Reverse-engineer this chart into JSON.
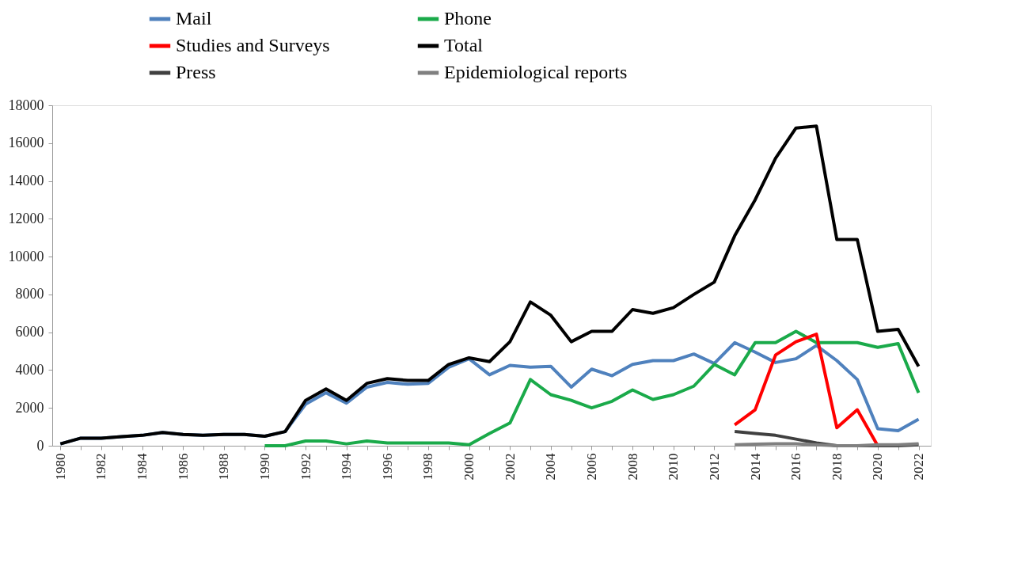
{
  "chart_data": {
    "type": "line",
    "x": [
      1980,
      1981,
      1982,
      1983,
      1984,
      1985,
      1986,
      1987,
      1988,
      1989,
      1990,
      1991,
      1992,
      1993,
      1994,
      1995,
      1996,
      1997,
      1998,
      1999,
      2000,
      2001,
      2002,
      2003,
      2004,
      2005,
      2006,
      2007,
      2008,
      2009,
      2010,
      2011,
      2012,
      2013,
      2014,
      2015,
      2016,
      2017,
      2018,
      2019,
      2020,
      2021,
      2022
    ],
    "series": [
      {
        "name": "Mail",
        "color": "#4f81bd",
        "values": [
          100,
          400,
          400,
          480,
          550,
          700,
          600,
          550,
          600,
          600,
          500,
          750,
          2200,
          2800,
          2250,
          3100,
          3350,
          3250,
          3300,
          4150,
          4600,
          3750,
          4250,
          4150,
          4200,
          3100,
          4050,
          3700,
          4300,
          4500,
          4500,
          4850,
          4350,
          5450,
          4950,
          4400,
          4600,
          5300,
          4500,
          3500,
          900,
          800,
          1400
        ]
      },
      {
        "name": "Phone",
        "color": "#1aaa4a",
        "values": [
          null,
          null,
          null,
          null,
          null,
          null,
          null,
          null,
          null,
          null,
          0,
          0,
          250,
          250,
          100,
          250,
          150,
          150,
          150,
          150,
          50,
          650,
          1200,
          3500,
          2700,
          2400,
          2000,
          2350,
          2950,
          2450,
          2700,
          3150,
          4300,
          3750,
          5450,
          5450,
          6050,
          5450,
          5450,
          5450,
          5200,
          5400,
          2800
        ]
      },
      {
        "name": "Studies and Surveys",
        "color": "#ff0000",
        "values": [
          null,
          null,
          null,
          null,
          null,
          null,
          null,
          null,
          null,
          null,
          null,
          null,
          null,
          null,
          null,
          null,
          null,
          null,
          null,
          null,
          null,
          null,
          null,
          null,
          null,
          null,
          null,
          null,
          null,
          null,
          null,
          null,
          null,
          1100,
          1900,
          4800,
          5500,
          5900,
          950,
          1900,
          0,
          null,
          null
        ]
      },
      {
        "name": "Total",
        "color": "#000000",
        "values": [
          100,
          400,
          400,
          480,
          550,
          700,
          600,
          550,
          600,
          600,
          500,
          750,
          2400,
          3000,
          2400,
          3300,
          3550,
          3450,
          3450,
          4300,
          4650,
          4450,
          5500,
          7600,
          6900,
          5500,
          6050,
          6050,
          7200,
          7000,
          7300,
          8000,
          8650,
          11100,
          13000,
          15200,
          16800,
          16900,
          10900,
          10900,
          6050,
          6150,
          4200
        ]
      },
      {
        "name": "Press",
        "color": "#404040",
        "values": [
          null,
          null,
          null,
          null,
          null,
          null,
          null,
          null,
          null,
          null,
          null,
          null,
          null,
          null,
          null,
          null,
          null,
          null,
          null,
          null,
          null,
          null,
          null,
          null,
          null,
          null,
          null,
          null,
          null,
          null,
          null,
          null,
          null,
          750,
          650,
          550,
          350,
          150,
          0,
          0,
          0,
          0,
          50
        ]
      },
      {
        "name": "Epidemiological reports",
        "color": "#808080",
        "values": [
          null,
          null,
          null,
          null,
          null,
          null,
          null,
          null,
          null,
          null,
          null,
          null,
          null,
          null,
          null,
          null,
          null,
          null,
          null,
          null,
          null,
          null,
          null,
          null,
          null,
          null,
          null,
          null,
          null,
          null,
          null,
          null,
          null,
          50,
          80,
          100,
          100,
          50,
          0,
          0,
          50,
          50,
          100
        ]
      }
    ],
    "xlim": [
      1979.6,
      2022.6
    ],
    "xticks": [
      1980,
      {
        "value": 1981,
        "label": null
      },
      1982,
      {
        "value": 1983,
        "label": null
      },
      1984,
      {
        "value": 1985,
        "label": null
      },
      1986,
      {
        "value": 1987,
        "label": null
      },
      1988,
      {
        "value": 1989,
        "label": null
      },
      1990,
      {
        "value": 1991,
        "label": null
      },
      1992,
      {
        "value": 1993,
        "label": null
      },
      1994,
      {
        "value": 1995,
        "label": null
      },
      1996,
      {
        "value": 1997,
        "label": null
      },
      1998,
      {
        "value": 1999,
        "label": null
      },
      2000,
      {
        "value": 2001,
        "label": null
      },
      2002,
      {
        "value": 2003,
        "label": null
      },
      2004,
      {
        "value": 2005,
        "label": null
      },
      2006,
      {
        "value": 2007,
        "label": null
      },
      2008,
      {
        "value": 2009,
        "label": null
      },
      2010,
      {
        "value": 2011,
        "label": null
      },
      2012,
      {
        "value": 2013,
        "label": null
      },
      2014,
      {
        "value": 2015,
        "label": null
      },
      2016,
      {
        "value": 2017,
        "label": null
      },
      2018,
      {
        "value": 2019,
        "label": null
      },
      2020,
      {
        "value": 2021,
        "label": null
      },
      2022
    ],
    "ylim": [
      0,
      18000
    ],
    "yticks": [
      0,
      2000,
      4000,
      6000,
      8000,
      10000,
      12000,
      14000,
      16000,
      18000
    ],
    "grid": false,
    "legend": "top",
    "marker": "none",
    "line_style": "solid"
  }
}
